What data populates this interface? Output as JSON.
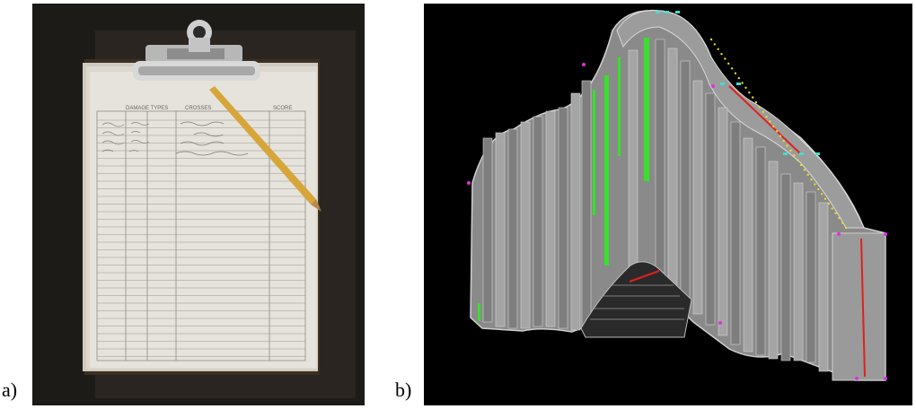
{
  "figure": {
    "labels": {
      "a": "a)",
      "b": "b)"
    }
  },
  "panel_a": {
    "image": "clipboard-photo",
    "form_header": [
      "DAMAGE TYPES",
      "CROSSES",
      "SCORE"
    ]
  },
  "panel_b": {
    "image": "3d-mesh-model",
    "colors": {
      "background": "#000000",
      "surface": "#8e8e8e",
      "highlight_green": "#37e02b",
      "marker_red": "#e02020",
      "marker_yellow": "#e8e020",
      "marker_cyan": "#3fe0d0",
      "marker_magenta": "#e030e0"
    }
  }
}
